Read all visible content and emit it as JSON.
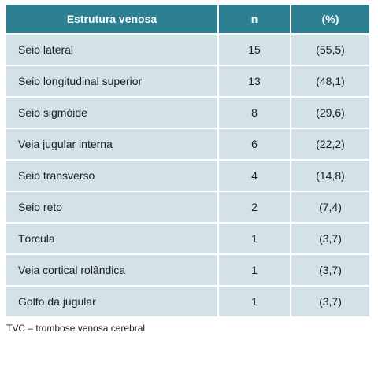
{
  "table": {
    "headers": [
      "Estrutura venosa",
      "n",
      "(%)"
    ],
    "rows": [
      {
        "name": "Seio lateral",
        "n": "15",
        "pct": "(55,5)"
      },
      {
        "name": "Seio longitudinal superior",
        "n": "13",
        "pct": "(48,1)"
      },
      {
        "name": "Seio sigmóide",
        "n": "8",
        "pct": "(29,6)"
      },
      {
        "name": "Veia jugular interna",
        "n": "6",
        "pct": "(22,2)"
      },
      {
        "name": "Seio transverso",
        "n": "4",
        "pct": "(14,8)"
      },
      {
        "name": "Seio reto",
        "n": "2",
        "pct": "(7,4)"
      },
      {
        "name": "Tórcula",
        "n": "1",
        "pct": "(3,7)"
      },
      {
        "name": "Veia cortical rolândica",
        "n": "1",
        "pct": "(3,7)"
      },
      {
        "name": "Golfo da jugular",
        "n": "1",
        "pct": "(3,7)"
      }
    ]
  },
  "footnote": "TVC – trombose venosa cerebral",
  "colors": {
    "header_bg": "#2d7f92",
    "row_bg": "#d3e1e8"
  }
}
